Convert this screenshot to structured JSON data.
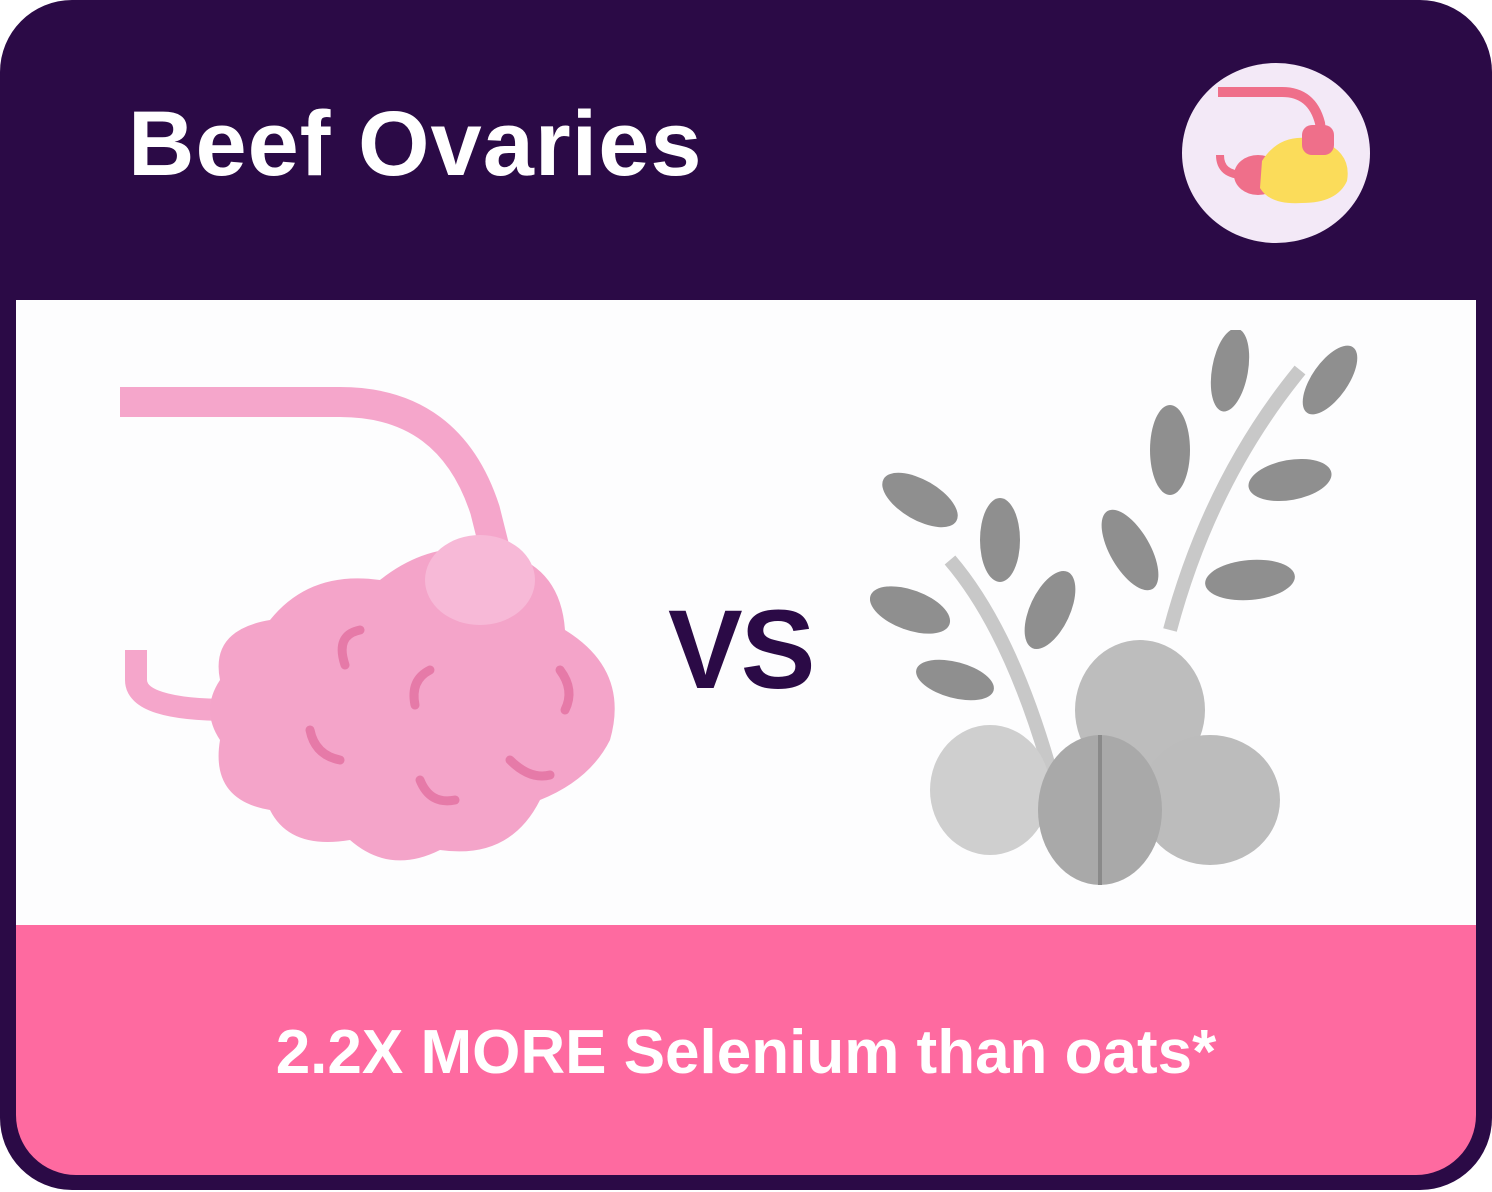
{
  "header": {
    "title": "Beef Ovaries",
    "badge_icon": "ovary-icon"
  },
  "comparison": {
    "left_icon": "ovary-illustration",
    "vs_label": "VS",
    "right_icon": "oats-illustration"
  },
  "footer": {
    "tagline": "2.2X MORE Selenium than oats*"
  },
  "colors": {
    "header": "#2b0a46",
    "footer": "#fe6aa0",
    "ovary": "#f4a0c8",
    "oats": "#9a9a9a"
  }
}
